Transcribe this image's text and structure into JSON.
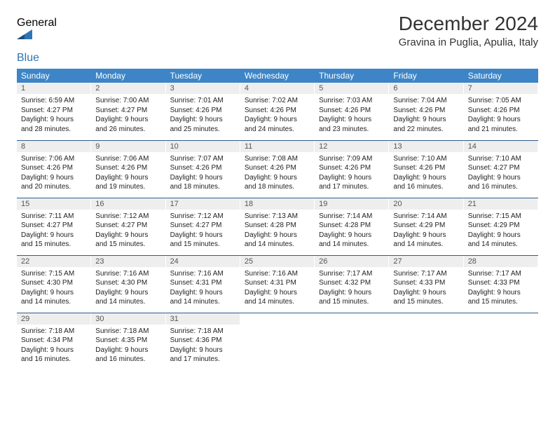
{
  "logo": {
    "text1": "General",
    "text2": "Blue",
    "color1": "#555555",
    "color2": "#2e75b6"
  },
  "title": "December 2024",
  "location": "Gravina in Puglia, Apulia, Italy",
  "header_bg": "#3d85c6",
  "header_fg": "#ffffff",
  "daynum_bg": "#eeeeee",
  "border_color": "#2e5c8a",
  "weekdays": [
    "Sunday",
    "Monday",
    "Tuesday",
    "Wednesday",
    "Thursday",
    "Friday",
    "Saturday"
  ],
  "weeks": [
    [
      {
        "n": "1",
        "sr": "6:59 AM",
        "ss": "4:27 PM",
        "dl": "9 hours and 28 minutes."
      },
      {
        "n": "2",
        "sr": "7:00 AM",
        "ss": "4:27 PM",
        "dl": "9 hours and 26 minutes."
      },
      {
        "n": "3",
        "sr": "7:01 AM",
        "ss": "4:26 PM",
        "dl": "9 hours and 25 minutes."
      },
      {
        "n": "4",
        "sr": "7:02 AM",
        "ss": "4:26 PM",
        "dl": "9 hours and 24 minutes."
      },
      {
        "n": "5",
        "sr": "7:03 AM",
        "ss": "4:26 PM",
        "dl": "9 hours and 23 minutes."
      },
      {
        "n": "6",
        "sr": "7:04 AM",
        "ss": "4:26 PM",
        "dl": "9 hours and 22 minutes."
      },
      {
        "n": "7",
        "sr": "7:05 AM",
        "ss": "4:26 PM",
        "dl": "9 hours and 21 minutes."
      }
    ],
    [
      {
        "n": "8",
        "sr": "7:06 AM",
        "ss": "4:26 PM",
        "dl": "9 hours and 20 minutes."
      },
      {
        "n": "9",
        "sr": "7:06 AM",
        "ss": "4:26 PM",
        "dl": "9 hours and 19 minutes."
      },
      {
        "n": "10",
        "sr": "7:07 AM",
        "ss": "4:26 PM",
        "dl": "9 hours and 18 minutes."
      },
      {
        "n": "11",
        "sr": "7:08 AM",
        "ss": "4:26 PM",
        "dl": "9 hours and 18 minutes."
      },
      {
        "n": "12",
        "sr": "7:09 AM",
        "ss": "4:26 PM",
        "dl": "9 hours and 17 minutes."
      },
      {
        "n": "13",
        "sr": "7:10 AM",
        "ss": "4:26 PM",
        "dl": "9 hours and 16 minutes."
      },
      {
        "n": "14",
        "sr": "7:10 AM",
        "ss": "4:27 PM",
        "dl": "9 hours and 16 minutes."
      }
    ],
    [
      {
        "n": "15",
        "sr": "7:11 AM",
        "ss": "4:27 PM",
        "dl": "9 hours and 15 minutes."
      },
      {
        "n": "16",
        "sr": "7:12 AM",
        "ss": "4:27 PM",
        "dl": "9 hours and 15 minutes."
      },
      {
        "n": "17",
        "sr": "7:12 AM",
        "ss": "4:27 PM",
        "dl": "9 hours and 15 minutes."
      },
      {
        "n": "18",
        "sr": "7:13 AM",
        "ss": "4:28 PM",
        "dl": "9 hours and 14 minutes."
      },
      {
        "n": "19",
        "sr": "7:14 AM",
        "ss": "4:28 PM",
        "dl": "9 hours and 14 minutes."
      },
      {
        "n": "20",
        "sr": "7:14 AM",
        "ss": "4:29 PM",
        "dl": "9 hours and 14 minutes."
      },
      {
        "n": "21",
        "sr": "7:15 AM",
        "ss": "4:29 PM",
        "dl": "9 hours and 14 minutes."
      }
    ],
    [
      {
        "n": "22",
        "sr": "7:15 AM",
        "ss": "4:30 PM",
        "dl": "9 hours and 14 minutes."
      },
      {
        "n": "23",
        "sr": "7:16 AM",
        "ss": "4:30 PM",
        "dl": "9 hours and 14 minutes."
      },
      {
        "n": "24",
        "sr": "7:16 AM",
        "ss": "4:31 PM",
        "dl": "9 hours and 14 minutes."
      },
      {
        "n": "25",
        "sr": "7:16 AM",
        "ss": "4:31 PM",
        "dl": "9 hours and 14 minutes."
      },
      {
        "n": "26",
        "sr": "7:17 AM",
        "ss": "4:32 PM",
        "dl": "9 hours and 15 minutes."
      },
      {
        "n": "27",
        "sr": "7:17 AM",
        "ss": "4:33 PM",
        "dl": "9 hours and 15 minutes."
      },
      {
        "n": "28",
        "sr": "7:17 AM",
        "ss": "4:33 PM",
        "dl": "9 hours and 15 minutes."
      }
    ],
    [
      {
        "n": "29",
        "sr": "7:18 AM",
        "ss": "4:34 PM",
        "dl": "9 hours and 16 minutes."
      },
      {
        "n": "30",
        "sr": "7:18 AM",
        "ss": "4:35 PM",
        "dl": "9 hours and 16 minutes."
      },
      {
        "n": "31",
        "sr": "7:18 AM",
        "ss": "4:36 PM",
        "dl": "9 hours and 17 minutes."
      },
      null,
      null,
      null,
      null
    ]
  ],
  "labels": {
    "sunrise": "Sunrise:",
    "sunset": "Sunset:",
    "daylight": "Daylight:"
  }
}
